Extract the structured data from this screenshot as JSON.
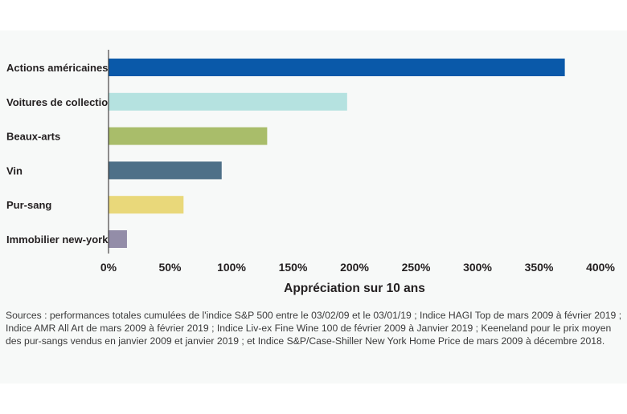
{
  "chart_data": {
    "type": "bar",
    "orientation": "horizontal",
    "categories": [
      "Actions américaines",
      "Voitures de collection",
      "Beaux-arts",
      "Vin",
      "Pur-sang",
      "Immobilier new-yorkais"
    ],
    "values": [
      371,
      194,
      129,
      92,
      61,
      15
    ],
    "colors": [
      "#0a59a9",
      "#b5e2e0",
      "#a9bd6a",
      "#4e7088",
      "#e9d87a",
      "#938da8"
    ],
    "xlabel": "Appréciation sur 10 ans",
    "xlim": [
      0,
      400
    ],
    "ticks": [
      0,
      50,
      100,
      150,
      200,
      250,
      300,
      350,
      400
    ],
    "tick_labels": [
      "0%",
      "50%",
      "100%",
      "150%",
      "200%",
      "250%",
      "300%",
      "350%",
      "400%"
    ],
    "grid": false,
    "legend": "none"
  },
  "source_note": "Sources : performances totales cumulées de l'indice S&P 500 entre le 03/02/09 et le 03/01/19 ; Indice HAGI Top de mars 2009 à février 2019 ; Indice AMR All Art de mars 2009 à février 2019 ; Indice Liv-ex Fine Wine 100 de février 2009 à Janvier 2019 ; Keeneland pour le prix moyen des pur-sangs vendus en janvier 2009 et janvier 2019 ; et Indice S&P/Case-Shiller New York Home Price de mars 2009 à décembre 2018."
}
